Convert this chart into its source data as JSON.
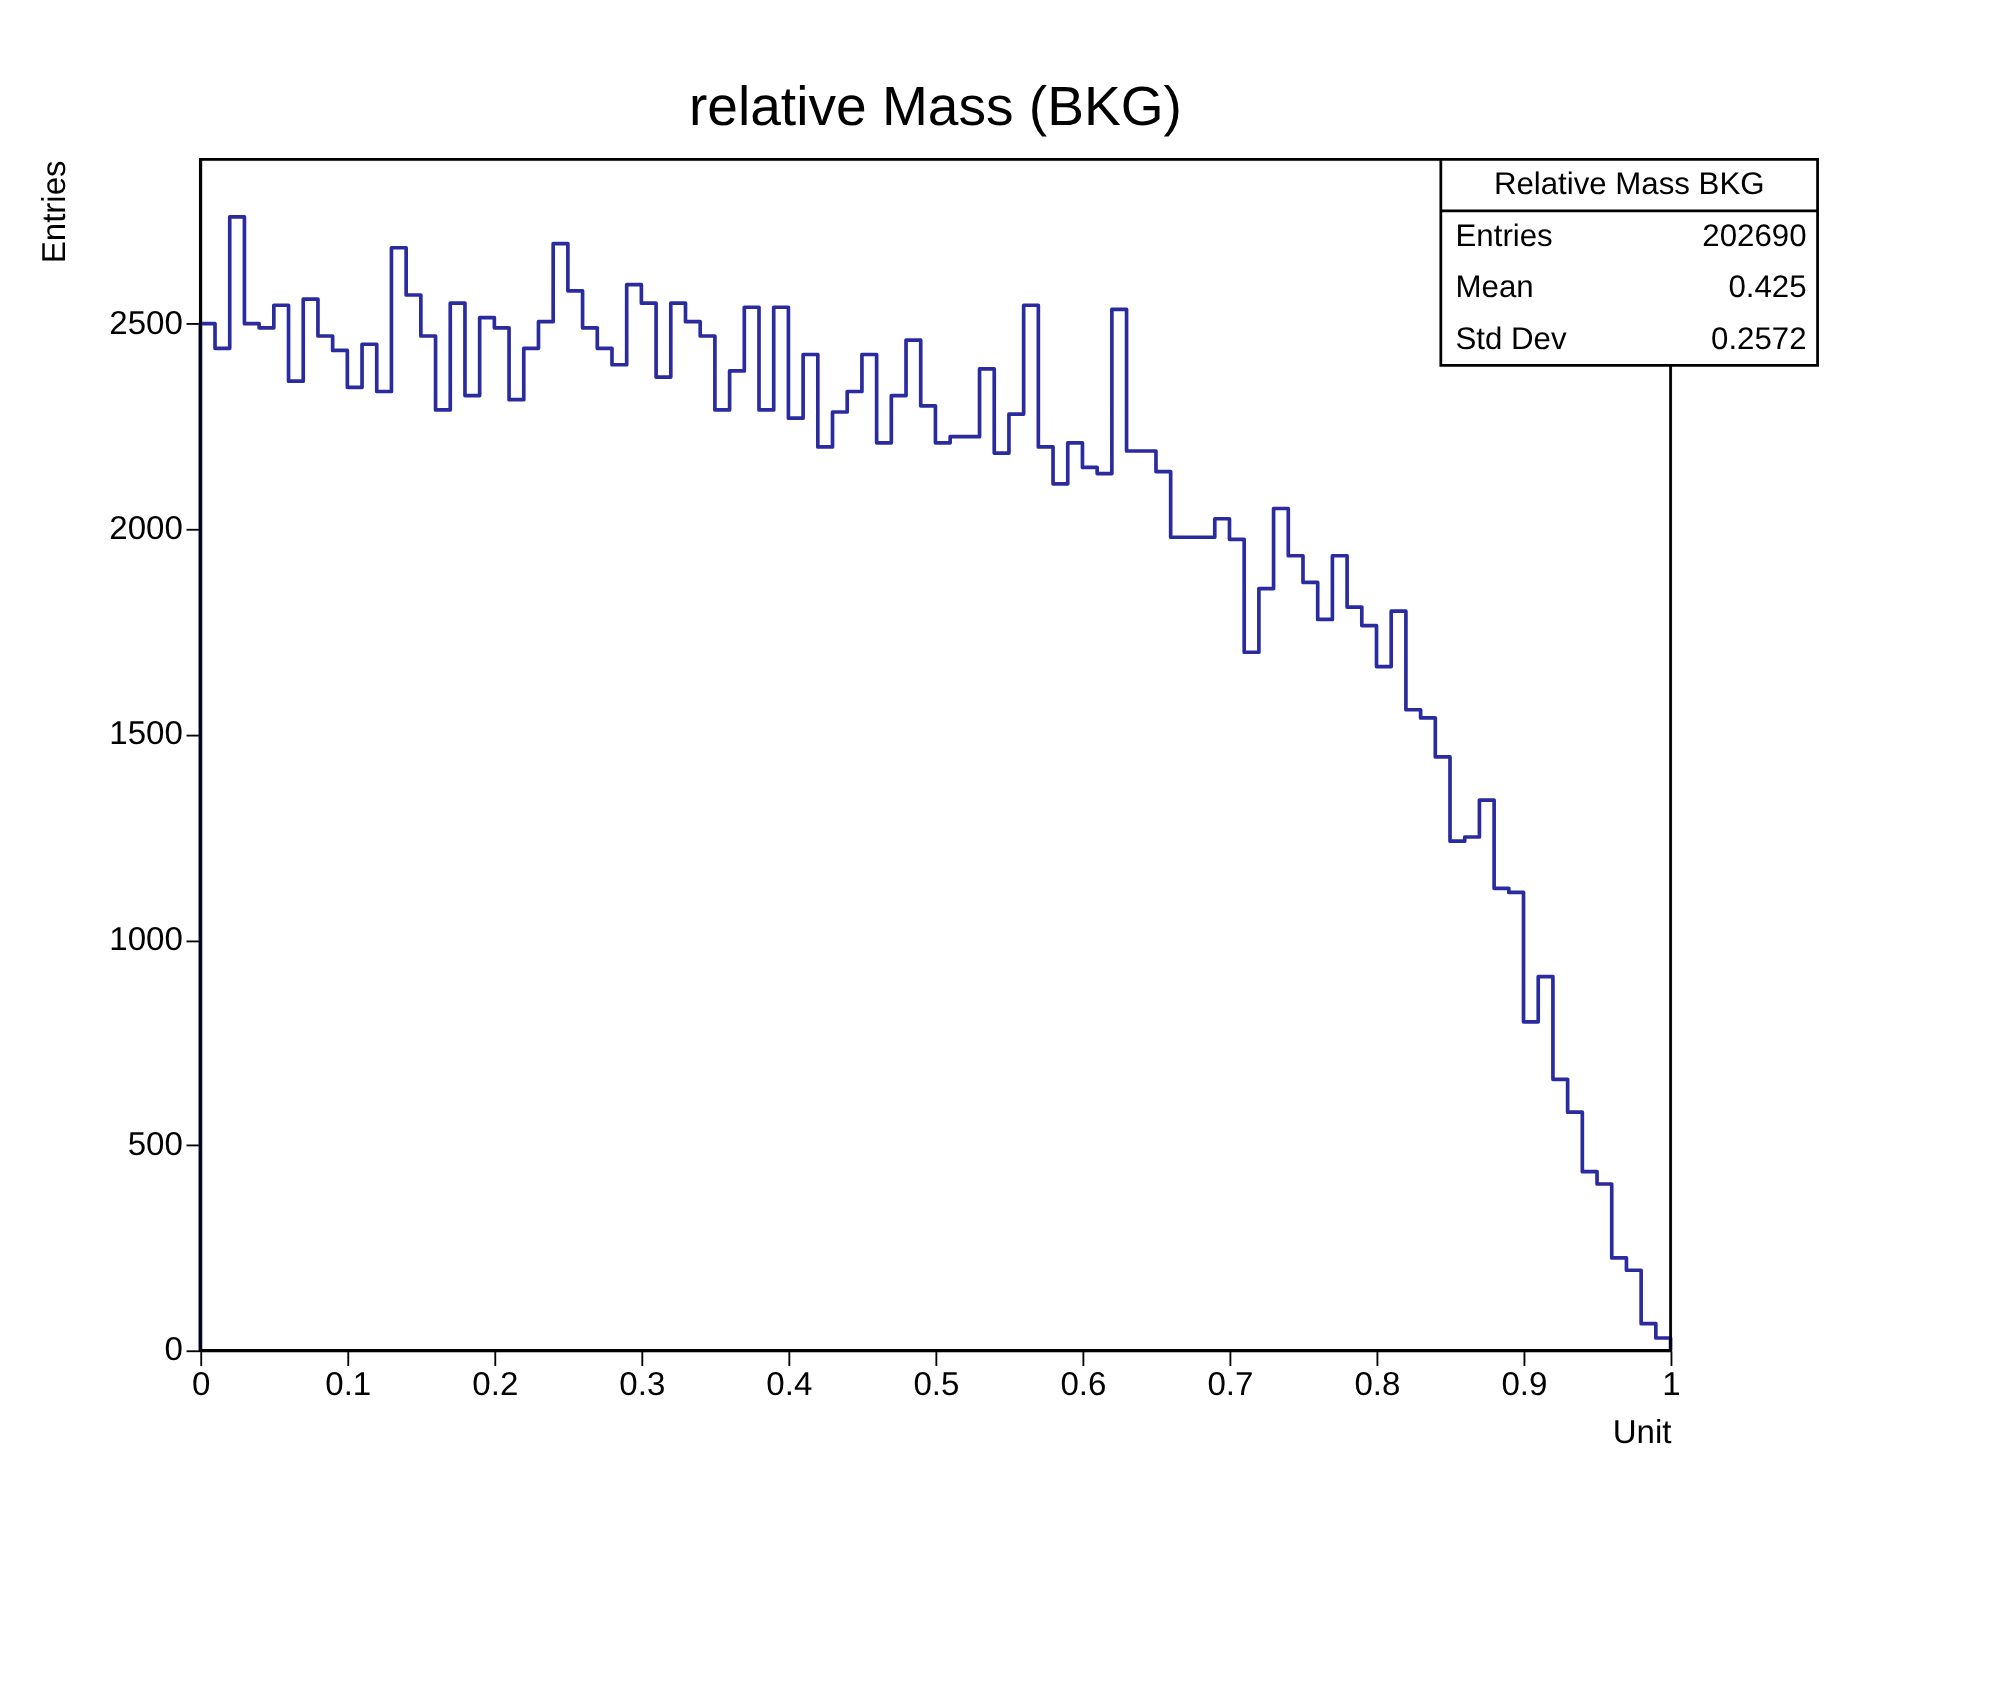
{
  "chart_data": {
    "type": "histogram",
    "title": "relative Mass (BKG)",
    "xlabel": "Unit",
    "ylabel": "Entries",
    "bins": [
      0,
      0.01,
      0.02,
      0.03,
      0.04,
      0.05,
      0.06,
      0.07,
      0.08,
      0.09,
      0.1,
      0.11,
      0.12,
      0.13,
      0.14,
      0.15,
      0.16,
      0.17,
      0.18,
      0.19,
      0.2,
      0.21,
      0.22,
      0.23,
      0.24,
      0.25,
      0.26,
      0.27,
      0.28,
      0.29,
      0.3,
      0.31,
      0.32,
      0.33,
      0.34,
      0.35,
      0.36,
      0.37,
      0.38,
      0.39,
      0.4,
      0.41,
      0.42,
      0.43,
      0.44,
      0.45,
      0.46,
      0.47,
      0.48,
      0.49,
      0.5,
      0.51,
      0.52,
      0.53,
      0.54,
      0.55,
      0.56,
      0.57,
      0.58,
      0.59,
      0.6,
      0.61,
      0.62,
      0.63,
      0.64,
      0.65,
      0.66,
      0.67,
      0.68,
      0.69,
      0.7,
      0.71,
      0.72,
      0.73,
      0.74,
      0.75,
      0.76,
      0.77,
      0.78,
      0.79,
      0.8,
      0.81,
      0.82,
      0.83,
      0.84,
      0.85,
      0.86,
      0.87,
      0.88,
      0.89,
      0.9,
      0.91,
      0.92,
      0.93,
      0.94,
      0.95,
      0.96,
      0.97,
      0.98,
      0.99,
      1
    ],
    "values": [
      2500,
      2440,
      2760,
      2500,
      2490,
      2545,
      2360,
      2560,
      2470,
      2435,
      2345,
      2450,
      2335,
      2685,
      2570,
      2470,
      2290,
      2550,
      2325,
      2515,
      2490,
      2315,
      2440,
      2505,
      2695,
      2580,
      2490,
      2440,
      2400,
      2595,
      2550,
      2370,
      2550,
      2505,
      2470,
      2290,
      2385,
      2540,
      2290,
      2540,
      2270,
      2425,
      2200,
      2285,
      2335,
      2425,
      2210,
      2325,
      2460,
      2300,
      2210,
      2225,
      2225,
      2390,
      2185,
      2280,
      2545,
      2200,
      2110,
      2210,
      2150,
      2135,
      2535,
      2190,
      2190,
      2140,
      1980,
      1980,
      1980,
      2025,
      1975,
      1700,
      1855,
      2050,
      1935,
      1870,
      1780,
      1935,
      1810,
      1765,
      1665,
      1800,
      1560,
      1540,
      1445,
      1240,
      1250,
      1340,
      1125,
      1115,
      800,
      910,
      660,
      580,
      435,
      405,
      225,
      195,
      65,
      30
    ],
    "color": "#2b2ba0",
    "xlim": [
      0,
      1
    ],
    "ylim": [
      0,
      2900
    ],
    "xticks": [
      0,
      0.1,
      0.2,
      0.3,
      0.4,
      0.5,
      0.6,
      0.7,
      0.8,
      0.9,
      1
    ],
    "yticks": [
      0,
      500,
      1000,
      1500,
      2000,
      2500
    ],
    "grid": false,
    "annotations": [
      "Relative Mass BKG",
      "Entries",
      "202690",
      "Mean",
      "0.425",
      "Std Dev",
      "0.2572"
    ]
  }
}
